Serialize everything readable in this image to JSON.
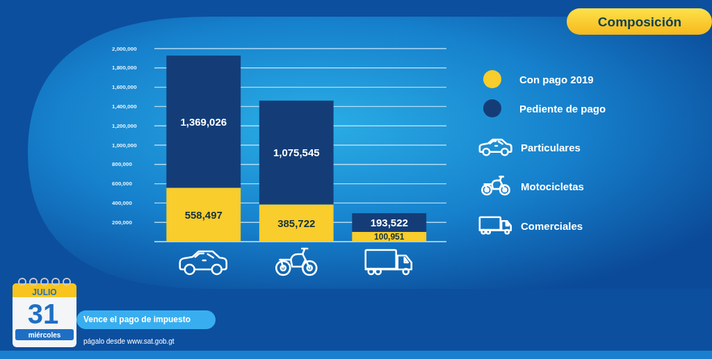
{
  "chart_data": {
    "type": "bar",
    "title": "Composición",
    "categories": [
      null,
      null,
      null
    ],
    "series": [
      {
        "name": "Con pago 2019",
        "color": "#f8cd2c",
        "values": [
          558497,
          385722,
          100951
        ],
        "value_labels": [
          "558,497",
          "385,722",
          "100,951"
        ]
      },
      {
        "name": "Pediente de pago",
        "color": "#143d78",
        "values": [
          1369026,
          1075545,
          193522
        ],
        "value_labels": [
          "1,369,026",
          "1,075,545",
          "193,522"
        ]
      }
    ],
    "stacked": true,
    "ylim": [
      0,
      2000000
    ],
    "yticks": [
      {
        "value": 200000,
        "label": "200,000"
      },
      {
        "value": 400000,
        "label": "400,000"
      },
      {
        "value": 600000,
        "label": "600,000"
      },
      {
        "value": 800000,
        "label": "800,000"
      },
      {
        "value": 1000000,
        "label": "1,000,000"
      },
      {
        "value": 1200000,
        "label": "1,200,000"
      },
      {
        "value": 1400000,
        "label": "1,400,000"
      },
      {
        "value": 1600000,
        "label": "1,600,000"
      },
      {
        "value": 1800000,
        "label": "1,800,000"
      },
      {
        "value": 2000000,
        "label": "2,000,000"
      }
    ],
    "grid": "y",
    "legend": "right",
    "annotations": [
      "Particulares",
      "Motocicletas",
      "Comerciales",
      "JULIO",
      "31",
      "miércoles",
      "Vence el pago de impuesto",
      "págalo desde www.sat.gob.gt"
    ]
  }
}
